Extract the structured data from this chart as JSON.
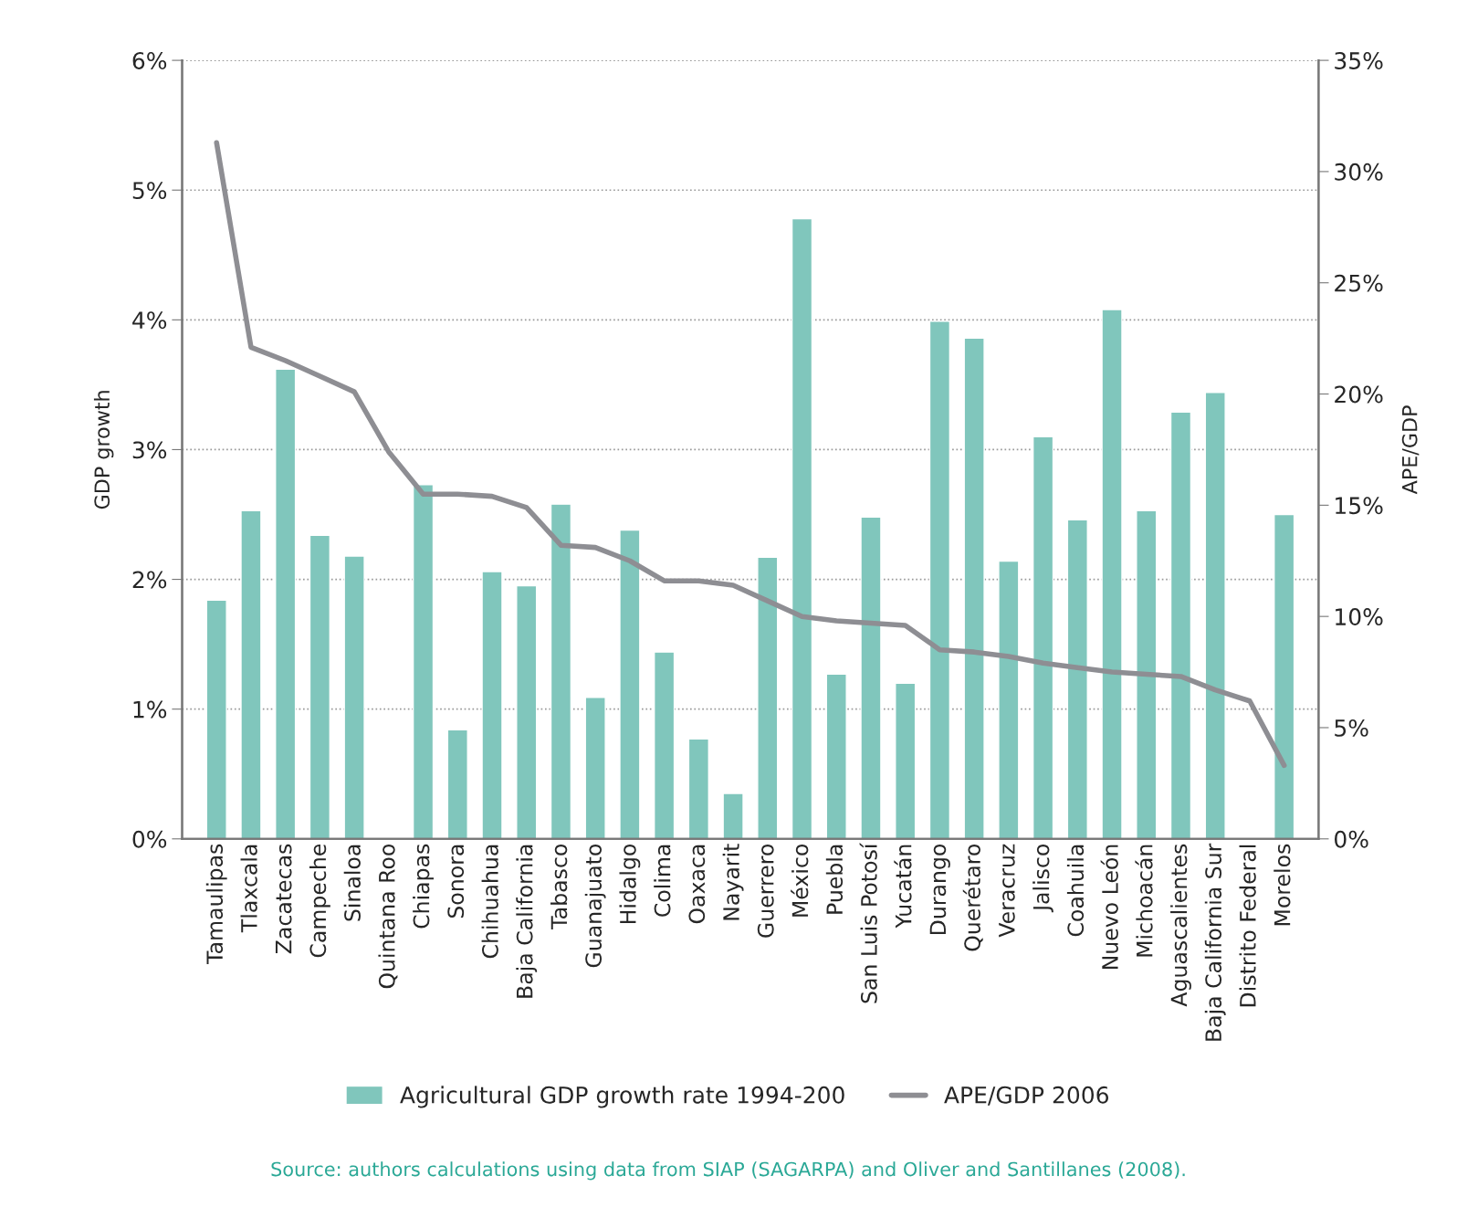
{
  "chart_data": {
    "type": "bar",
    "ylabel": "GDP growth",
    "y2label": "APE/GDP",
    "categories": [
      "Tamaulipas",
      "Tlaxcala",
      "Zacatecas",
      "Campeche",
      "Sinaloa",
      "Quintana Roo",
      "Chiapas",
      "Sonora",
      "Chihuahua",
      "Baja California",
      "Tabasco",
      "Guanajuato",
      "Hidalgo",
      "Colima",
      "Oaxaca",
      "Nayarit",
      "Guerrero",
      "México",
      "Puebla",
      "San Luis Potosí",
      "Yucatán",
      "Durango",
      "Querétaro",
      "Veracruz",
      "Jalisco",
      "Coahuila",
      "Nuevo León",
      "Michoacán",
      "Aguascalientes",
      "Baja California Sur",
      "Distrito Federal",
      "Morelos"
    ],
    "series": [
      {
        "name": "Agricultural GDP growth rate 1994-200",
        "color": "#80c6bc",
        "values": [
          1.84,
          2.53,
          3.62,
          2.34,
          2.18,
          null,
          2.73,
          0.84,
          2.06,
          1.95,
          2.58,
          1.09,
          2.38,
          1.44,
          0.77,
          0.35,
          2.17,
          4.78,
          1.27,
          2.48,
          1.2,
          3.99,
          3.86,
          2.14,
          3.1,
          2.46,
          4.08,
          2.53,
          3.29,
          3.44,
          null,
          2.5
        ]
      },
      {
        "name": "APE/GDP 2006",
        "type": "line",
        "axis": "y2",
        "color": "#8e8e93",
        "values": [
          31.3,
          22.1,
          21.5,
          20.8,
          20.1,
          17.4,
          15.5,
          15.5,
          15.4,
          14.9,
          13.2,
          13.1,
          12.5,
          11.6,
          11.6,
          11.4,
          10.7,
          10.0,
          9.8,
          9.7,
          9.6,
          8.5,
          8.4,
          8.2,
          7.9,
          7.7,
          7.5,
          7.4,
          7.3,
          6.7,
          6.2,
          3.3
        ]
      }
    ],
    "ylim": [
      0,
      6
    ],
    "yticks": [
      {
        "value": 0,
        "label": "0%"
      },
      {
        "value": 1,
        "label": "1%"
      },
      {
        "value": 2,
        "label": "2%"
      },
      {
        "value": 3,
        "label": "3%"
      },
      {
        "value": 4,
        "label": "4%"
      },
      {
        "value": 5,
        "label": "5%"
      },
      {
        "value": 6,
        "label": "6%"
      }
    ],
    "y2lim": [
      0,
      35
    ],
    "y2ticks": [
      {
        "value": 0,
        "label": "0%"
      },
      {
        "value": 5,
        "label": "5%"
      },
      {
        "value": 10,
        "label": "10%"
      },
      {
        "value": 15,
        "label": "15%"
      },
      {
        "value": 20,
        "label": "20%"
      },
      {
        "value": 25,
        "label": "25%"
      },
      {
        "value": 30,
        "label": "30%"
      },
      {
        "value": 35,
        "label": "35%"
      }
    ],
    "grid": "y",
    "line_style": "solid",
    "marker": "none",
    "legend": "bottom",
    "annotations": [
      "Source: authors calculations using data from SIAP (SAGARPA) and Oliver and Santillanes (2008)."
    ]
  }
}
